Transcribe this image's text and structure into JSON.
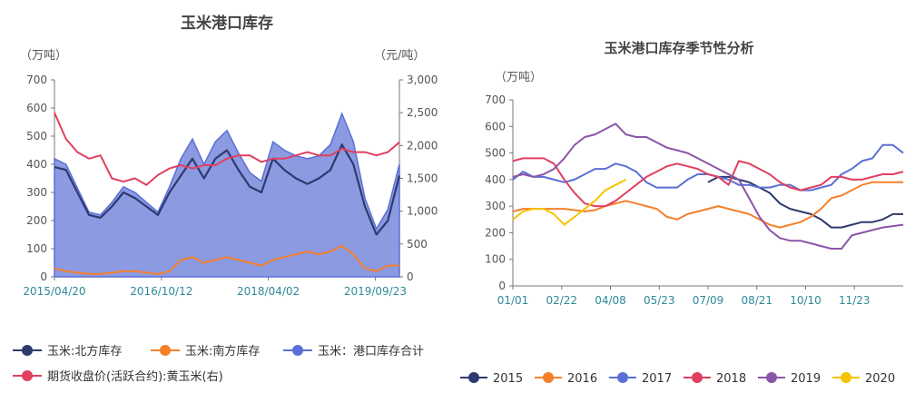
{
  "chart_data": [
    {
      "type": "area",
      "title": "玉米港口库存",
      "ylabel_left": "（万吨）",
      "ylabel_right": "（元/吨）",
      "ylim_left": [
        0,
        700
      ],
      "ylim_right": [
        0,
        3000
      ],
      "yticks_left": [
        "0",
        "100",
        "200",
        "300",
        "400",
        "500",
        "600",
        "700"
      ],
      "yticks_right": [
        "0",
        "500",
        "1,000",
        "1,500",
        "2,000",
        "2,500",
        "3,000"
      ],
      "x_ticks": [
        "2015/04/20",
        "2016/10/12",
        "2018/04/02",
        "2019/09/23"
      ],
      "x": [
        "2015/04/20",
        "2015/06",
        "2015/08",
        "2015/10",
        "2015/12",
        "2016/02",
        "2016/04",
        "2016/06",
        "2016/08",
        "2016/10",
        "2016/12",
        "2017/02",
        "2017/04",
        "2017/06",
        "2017/08",
        "2017/10",
        "2017/12",
        "2018/02",
        "2018/04",
        "2018/06",
        "2018/08",
        "2018/10",
        "2018/12",
        "2019/02",
        "2019/04",
        "2019/06",
        "2019/08",
        "2019/10",
        "2019/12",
        "2020/02",
        "2020/04"
      ],
      "series": [
        {
          "name": "玉米:北方库存",
          "axis": "left",
          "color": "#2e3a6e",
          "values": [
            390,
            380,
            300,
            220,
            210,
            250,
            300,
            280,
            250,
            220,
            300,
            360,
            420,
            350,
            420,
            450,
            380,
            320,
            300,
            420,
            380,
            350,
            330,
            350,
            380,
            470,
            400,
            250,
            150,
            200,
            360
          ]
        },
        {
          "name": "玉米:南方库存",
          "axis": "left",
          "color": "#f5802a",
          "values": [
            30,
            20,
            15,
            10,
            10,
            15,
            20,
            20,
            15,
            10,
            20,
            60,
            70,
            50,
            60,
            70,
            60,
            50,
            40,
            60,
            70,
            80,
            90,
            80,
            90,
            110,
            80,
            30,
            20,
            40,
            40
          ]
        },
        {
          "name": "玉米：港口库存合计",
          "axis": "left",
          "color": "#5b6fd6",
          "values": [
            420,
            400,
            315,
            230,
            220,
            265,
            320,
            300,
            265,
            230,
            320,
            420,
            490,
            400,
            480,
            520,
            440,
            370,
            340,
            480,
            450,
            430,
            420,
            430,
            470,
            580,
            480,
            280,
            170,
            240,
            400
          ]
        },
        {
          "name": "期货收盘价(活跃合约):黄玉米(右)",
          "axis": "right",
          "color": "#e0405f",
          "values": [
            2500,
            2100,
            1900,
            1800,
            1850,
            1500,
            1450,
            1500,
            1400,
            1550,
            1650,
            1700,
            1650,
            1700,
            1700,
            1800,
            1850,
            1850,
            1750,
            1800,
            1800,
            1850,
            1900,
            1850,
            1850,
            1950,
            1900,
            1900,
            1850,
            1900,
            2050
          ]
        }
      ]
    },
    {
      "type": "line",
      "title": "玉米港口库存季节性分析",
      "ylabel": "（万吨）",
      "ylim": [
        0,
        700
      ],
      "yticks": [
        "0",
        "100",
        "200",
        "300",
        "400",
        "500",
        "600",
        "700"
      ],
      "x_ticks": [
        "01/01",
        "02/22",
        "04/08",
        "05/23",
        "07/09",
        "08/21",
        "10/10",
        "11/23"
      ],
      "series": [
        {
          "name": "2015",
          "color": "#2e3a6e",
          "values": [
            null,
            null,
            null,
            null,
            null,
            null,
            null,
            null,
            null,
            null,
            null,
            null,
            null,
            null,
            null,
            null,
            null,
            null,
            null,
            390,
            410,
            410,
            400,
            390,
            370,
            350,
            310,
            290,
            280,
            270,
            250,
            220,
            220,
            230,
            240,
            240,
            250,
            270,
            270
          ]
        },
        {
          "name": "2016",
          "color": "#f5802a",
          "values": [
            280,
            290,
            290,
            290,
            290,
            290,
            285,
            280,
            285,
            300,
            310,
            320,
            310,
            300,
            290,
            260,
            250,
            270,
            280,
            290,
            300,
            290,
            280,
            270,
            250,
            230,
            220,
            230,
            240,
            260,
            290,
            330,
            340,
            360,
            380,
            390,
            390,
            390,
            390
          ]
        },
        {
          "name": "2017",
          "color": "#5b6fd6",
          "values": [
            400,
            430,
            410,
            410,
            400,
            390,
            400,
            420,
            440,
            440,
            460,
            450,
            430,
            390,
            370,
            370,
            370,
            400,
            420,
            420,
            410,
            400,
            380,
            380,
            370,
            370,
            380,
            380,
            360,
            360,
            370,
            380,
            420,
            440,
            470,
            480,
            530,
            530,
            500
          ]
        },
        {
          "name": "2018",
          "color": "#e0405f",
          "values": [
            470,
            480,
            480,
            480,
            460,
            400,
            350,
            310,
            300,
            300,
            320,
            350,
            380,
            410,
            430,
            450,
            460,
            450,
            440,
            420,
            410,
            380,
            470,
            460,
            440,
            420,
            390,
            370,
            360,
            370,
            380,
            410,
            410,
            400,
            400,
            410,
            420,
            420,
            430
          ]
        },
        {
          "name": "2019",
          "color": "#8b55a8",
          "values": [
            410,
            420,
            410,
            420,
            440,
            480,
            530,
            560,
            570,
            590,
            610,
            570,
            560,
            560,
            540,
            520,
            510,
            500,
            480,
            460,
            440,
            420,
            400,
            330,
            260,
            210,
            180,
            170,
            170,
            160,
            150,
            140,
            140,
            190,
            200,
            210,
            220,
            225,
            230
          ]
        },
        {
          "name": "2020",
          "color": "#f6c400",
          "values": [
            250,
            280,
            290,
            290,
            270,
            230,
            260,
            290,
            320,
            360,
            380,
            400,
            null,
            null,
            null,
            null,
            null,
            null,
            null,
            null,
            null,
            null,
            null,
            null,
            null,
            null,
            null,
            null,
            null,
            null,
            null,
            null,
            null,
            null,
            null,
            null,
            null,
            null,
            null
          ]
        }
      ]
    }
  ]
}
